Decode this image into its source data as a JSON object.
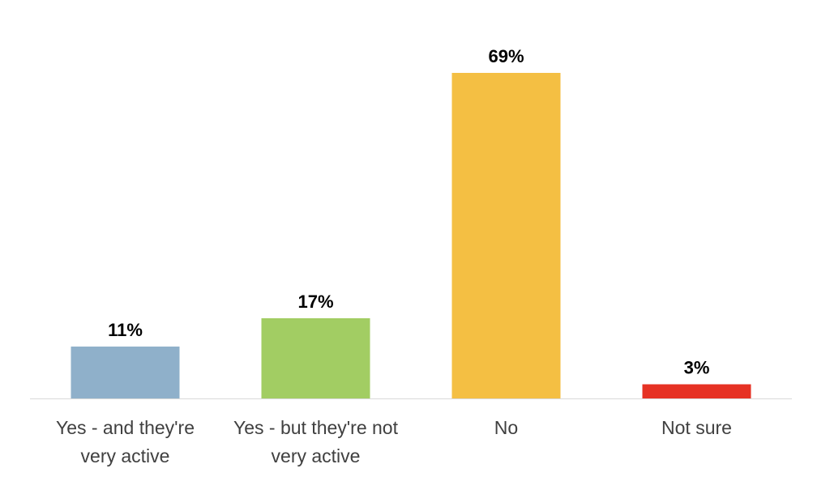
{
  "chart_data": {
    "type": "bar",
    "categories": [
      [
        "Yes - and they're",
        "very active"
      ],
      [
        "Yes - but they're not",
        "very active"
      ],
      [
        "No"
      ],
      [
        "Not sure"
      ]
    ],
    "values": [
      11,
      17,
      69,
      3
    ],
    "data_labels": [
      "11%",
      "17%",
      "69%",
      "3%"
    ],
    "colors": [
      "#8FB0CA",
      "#A2CD63",
      "#F4BF43",
      "#E63224"
    ],
    "unit": "%",
    "ylim": [
      0,
      69
    ],
    "grid": false,
    "legend": "none",
    "title": "",
    "xlabel": "",
    "ylabel": ""
  }
}
